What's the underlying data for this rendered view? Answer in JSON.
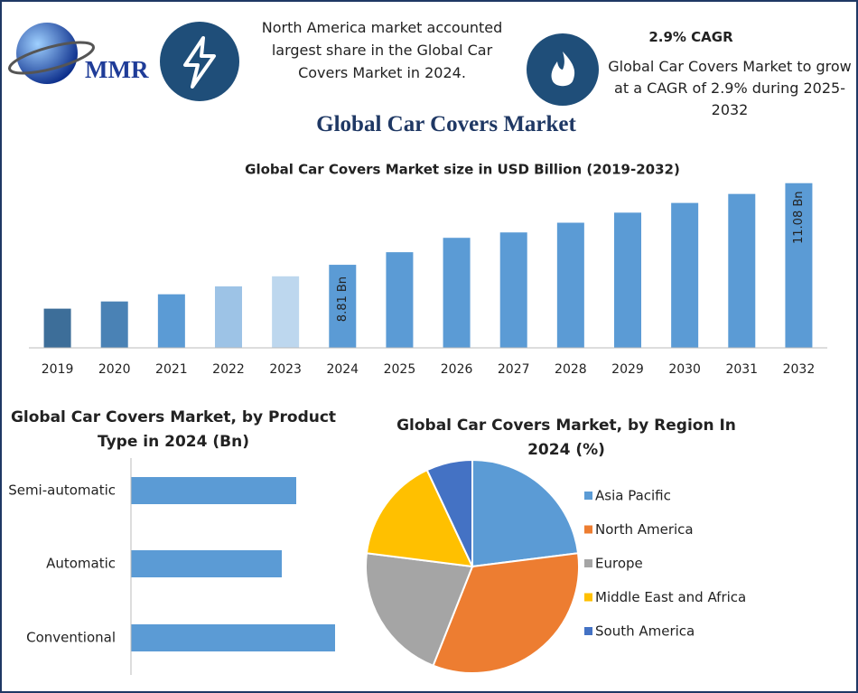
{
  "header": {
    "logo": "MMR",
    "note": "North America market accounted largest share in the Global Car Covers Market in 2024.",
    "cagr_title": "2.9% CAGR",
    "cagr_text": "Global Car Covers Market to grow at a CAGR of 2.9% during 2025-2032",
    "title": "Global Car Covers Market"
  },
  "chart_data": [
    {
      "type": "bar",
      "title": "Global Car Covers Market size in USD Billion (2019-2032)",
      "categories": [
        "2019",
        "2020",
        "2021",
        "2022",
        "2023",
        "2024",
        "2025",
        "2026",
        "2027",
        "2028",
        "2029",
        "2030",
        "2031",
        "2032"
      ],
      "values": [
        7.59,
        7.79,
        7.99,
        8.21,
        8.49,
        8.81,
        9.16,
        9.56,
        9.71,
        9.98,
        10.26,
        10.53,
        10.78,
        11.08
      ],
      "value_labels": [
        null,
        null,
        null,
        null,
        null,
        "8.81 Bn",
        null,
        null,
        null,
        null,
        null,
        null,
        null,
        "11.08 Bn"
      ],
      "colors": [
        "#3d6e99",
        "#4a82b5",
        "#5b9bd5",
        "#9dc3e6",
        "#bdd7ee",
        "#5b9bd5",
        "#5b9bd5",
        "#5b9bd5",
        "#5b9bd5",
        "#5b9bd5",
        "#5b9bd5",
        "#5b9bd5",
        "#5b9bd5",
        "#5b9bd5"
      ],
      "ylim": [
        6.5,
        11.5
      ]
    },
    {
      "type": "barh",
      "title": "Global Car Covers Market, by Product Type in 2024 (Bn)",
      "categories": [
        "Semi-automatic",
        "Automatic",
        "Conventional"
      ],
      "values": [
        1.83,
        1.67,
        2.26
      ],
      "color": "#5b9bd5",
      "xlim": [
        0,
        3
      ]
    },
    {
      "type": "pie",
      "title": "Global Car Covers Market, by Region In 2024 (%)",
      "categories": [
        "Asia Pacific",
        "North America",
        "Europe",
        "Middle East and Africa",
        "South America"
      ],
      "values": [
        23,
        33,
        21,
        16,
        7
      ],
      "colors": [
        "#5b9bd5",
        "#ed7d31",
        "#a5a5a5",
        "#ffc000",
        "#4472c4"
      ],
      "legend": "right"
    }
  ]
}
